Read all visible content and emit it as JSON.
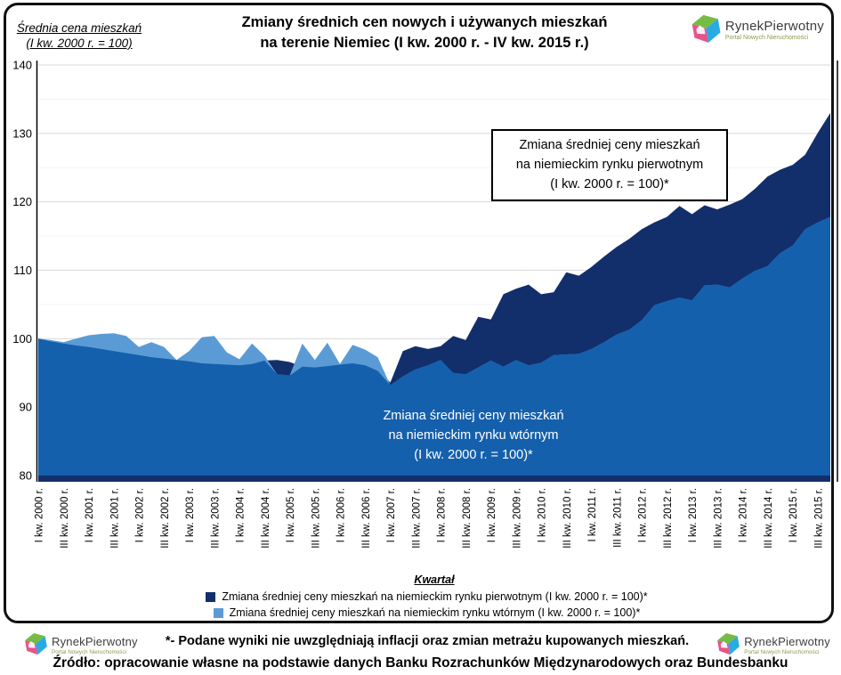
{
  "title": {
    "line1": "Zmiany średnich cen nowych i używanych mieszkań",
    "line2": "na terenie Niemiec (I kw. 2000 r. - IV kw. 2015 r.)"
  },
  "y_axis_header": {
    "line1": "Średnia cena mieszkań",
    "line2": "(I kw. 2000 r. = 100)"
  },
  "logo": {
    "name": "RynekPierwotny",
    "subtitle": "Portal Nowych Nieruchomości"
  },
  "annotations": {
    "primary": {
      "line1": "Zmiana średniej ceny mieszkań",
      "line2": "na niemieckim rynku pierwotnym",
      "line3": "(I kw. 2000 r. = 100)*"
    },
    "secondary": {
      "line1": "Zmiana średniej ceny mieszkań",
      "line2": "na niemieckim rynku wtórnym",
      "line3": "(I kw. 2000 r. = 100)*"
    }
  },
  "legend": [
    {
      "label": "Zmiana średniej ceny mieszkań na niemieckim rynku pierwotnym (I kw. 2000 r. = 100)*",
      "color": "#122F6B"
    },
    {
      "label": "Zmiana średniej ceny mieszkań na niemieckim rynku wtórnym (I kw. 2000 r. = 100)*",
      "color": "#5B9BD5"
    }
  ],
  "footer": {
    "footnote": "*- Podane wyniki nie uwzględniają inflacji oraz zmian metrażu kupowanych mieszkań.",
    "source": "Źródło: opracowanie własne na podstawie danych Banku Rozrachunków Międzynarodowych oraz Bundesbanku"
  },
  "chart_data": {
    "type": "area",
    "title": "Zmiany średnich cen nowych i używanych mieszkań na terenie Niemiec (I kw. 2000 r. - IV kw. 2015 r.)",
    "xlabel": "Kwartał",
    "ylabel": "Średnia cena mieszkań (I kw. 2000 r. = 100)",
    "ylim": [
      80,
      140
    ],
    "yticks": [
      80,
      90,
      100,
      110,
      120,
      130,
      140
    ],
    "grid": true,
    "x_period": "quarterly, I kw. 2000 - IV kw. 2015",
    "x_tick_labels": [
      "I kw. 2000 r.",
      "III kw. 2000 r.",
      "I kw. 2001 r.",
      "III kw. 2001 r.",
      "I kw. 2002 r.",
      "III kw. 2002 r.",
      "I kw. 2003 r.",
      "III kw. 2003 r.",
      "I kw. 2004 r.",
      "III kw. 2004 r.",
      "I kw. 2005 r.",
      "III kw. 2005 r.",
      "I kw. 2006 r.",
      "III kw. 2006 r.",
      "I kw. 2007 r.",
      "III kw. 2007 r.",
      "I kw. 2008 r.",
      "III kw. 2008 r.",
      "I kw. 2009 r.",
      "III kw. 2009 r.",
      "I kw. 2010 r.",
      "III kw. 2010 r.",
      "I kw. 2011 r.",
      "III kw. 2011 r.",
      "I kw. 2012 r.",
      "III kw. 2012 r.",
      "I kw. 2013 r.",
      "III kw. 2013 r.",
      "I kw. 2014 r.",
      "III kw. 2014 r.",
      "I kw. 2015 r.",
      "III kw. 2015 r."
    ],
    "overlap_color": "#1560AC",
    "axis_color": "#122F6B",
    "gridline_major_color": "#d9d9d9",
    "gridline_minor_color": "#f3f3f3",
    "series": [
      {
        "name": "Zmiana średniej ceny mieszkań na niemieckim rynku pierwotnym (I kw. 2000 r. = 100)*",
        "color": "#122F6B",
        "values": [
          100.0,
          99.6,
          99.3,
          99.0,
          98.8,
          98.5,
          98.2,
          97.9,
          97.6,
          97.3,
          97.1,
          96.9,
          96.7,
          96.4,
          96.3,
          96.2,
          96.1,
          96.3,
          96.8,
          96.9,
          96.6,
          95.9,
          95.8,
          96.0,
          96.2,
          96.4,
          96.1,
          95.3,
          93.6,
          98.2,
          98.9,
          98.5,
          98.9,
          100.4,
          99.8,
          103.2,
          102.8,
          106.5,
          107.3,
          107.9,
          106.5,
          106.8,
          109.7,
          109.2,
          110.5,
          112.0,
          113.4,
          114.6,
          116.0,
          117.0,
          117.8,
          119.4,
          118.2,
          119.5,
          118.9,
          119.6,
          120.4,
          121.9,
          123.7,
          124.7,
          125.4,
          126.9,
          130.1,
          133.0
        ]
      },
      {
        "name": "Zmiana średniej ceny mieszkań na niemieckim rynku wtórnym (I kw. 2000 r. = 100)*",
        "color": "#5B9BD5",
        "values": [
          100.0,
          99.8,
          99.5,
          100.0,
          100.5,
          100.7,
          100.8,
          100.4,
          98.8,
          99.5,
          98.8,
          96.9,
          98.2,
          100.2,
          100.4,
          98.0,
          97.0,
          99.3,
          97.5,
          94.8,
          94.6,
          99.3,
          96.9,
          99.4,
          96.3,
          99.1,
          98.4,
          97.3,
          93.2,
          94.5,
          95.5,
          96.1,
          96.9,
          95.0,
          94.8,
          95.8,
          96.8,
          95.9,
          96.9,
          96.1,
          96.5,
          97.6,
          97.7,
          97.8,
          98.5,
          99.5,
          100.6,
          101.3,
          102.7,
          104.9,
          105.5,
          106.0,
          105.6,
          107.8,
          107.9,
          107.5,
          108.8,
          109.9,
          110.6,
          112.5,
          113.6,
          116.0,
          117.0,
          117.8
        ]
      }
    ]
  }
}
